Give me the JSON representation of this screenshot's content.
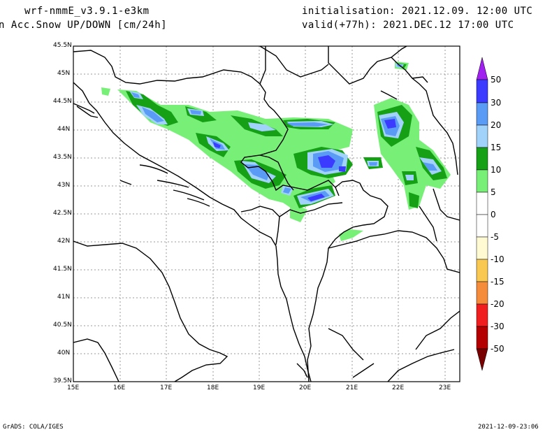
{
  "header": {
    "model": "wrf-nmmE_v3.9.1-e3km",
    "variable": "n Acc.Snow UP/DOWN [cm/24h]",
    "initialisation": "initialisation: 2021.12.09.  12:00 UTC",
    "valid": "valid(+77h): 2021.DEC.12 17:00 UTC"
  },
  "map": {
    "lat_labels": [
      "45.5N",
      "45N",
      "44.5N",
      "44N",
      "43.5N",
      "43N",
      "42.5N",
      "42N",
      "41.5N",
      "41N",
      "40.5N",
      "40N",
      "39.5N"
    ],
    "lon_labels": [
      "15E",
      "16E",
      "17E",
      "18E",
      "19E",
      "20E",
      "21E",
      "22E",
      "23E"
    ],
    "extent": {
      "lon": [
        15,
        23.3
      ],
      "lat": [
        39.5,
        45.5
      ]
    }
  },
  "legend": {
    "labels": [
      "50",
      "30",
      "20",
      "15",
      "10",
      "5",
      "0",
      "-5",
      "-10",
      "-15",
      "-20",
      "-30",
      "-50"
    ],
    "colors": {
      "top_arrow": "#a020f0",
      "c_30_50": "#3b3bff",
      "c_20_30": "#5a9bf5",
      "c_15_20": "#a0d2fa",
      "c_10_15": "#16a016",
      "c_5_10": "#78f078",
      "c_0_5": "#ffffff",
      "c_m5_0": "#ffffff",
      "c_m10_m5": "#fffad2",
      "c_m15_m10": "#f8c850",
      "c_m20_m15": "#f58c3c",
      "c_m30_m20": "#f01e1e",
      "c_m50_m30": "#b40000",
      "bottom_arrow": "#780000"
    }
  },
  "footer": {
    "left": "GrADS: COLA/IGES",
    "right": "2021-12-09-23:06"
  }
}
